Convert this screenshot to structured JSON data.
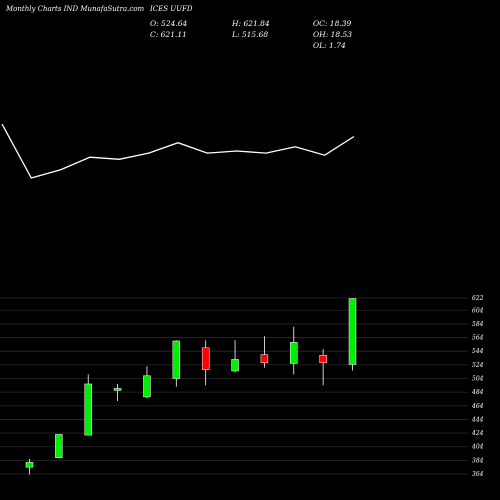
{
  "header": {
    "title": "Monthly Charts IND MunafaSutra.com",
    "symbol": "ICES UUFD",
    "open_text": "O: 524.64",
    "high_text": "H: 621.84",
    "oc_text": "OC: 18.39",
    "close_text": "C: 621.11",
    "low_text": "L: 515.68",
    "oh_text": "OH: 18.53",
    "ol_text": "OL: 1.74"
  },
  "colors": {
    "background": "#000000",
    "bullish": "#00ee00",
    "bearish": "#ff0000",
    "neutral": "#ffffff",
    "grid": "#2a2a2a",
    "line": "#ffffff",
    "text": "#ffffff"
  },
  "chart_data": [
    {
      "type": "line",
      "x": [
        1,
        2,
        3,
        4,
        5,
        6,
        7,
        8,
        9,
        10,
        11,
        12,
        13
      ],
      "values": [
        54,
        28,
        32,
        38,
        37,
        40,
        45,
        40,
        41,
        40,
        43,
        39,
        48
      ]
    },
    {
      "type": "candlestick",
      "y_ticks": [
        364,
        384,
        404,
        424,
        444,
        464,
        484,
        504,
        524,
        544,
        564,
        584,
        604,
        622
      ],
      "ylim": [
        360,
        630
      ],
      "candles": [
        {
          "open": 374,
          "high": 386,
          "low": 363,
          "close": 381
        },
        {
          "open": 388,
          "high": 422,
          "low": 388,
          "close": 422
        },
        {
          "open": 421,
          "high": 510,
          "low": 421,
          "close": 496
        },
        {
          "open": 486,
          "high": 496,
          "low": 471,
          "close": 488
        },
        {
          "open": 477,
          "high": 522,
          "low": 475,
          "close": 508
        },
        {
          "open": 504,
          "high": 560,
          "low": 492,
          "close": 559
        },
        {
          "open": 549,
          "high": 560,
          "low": 494,
          "close": 517
        },
        {
          "open": 515,
          "high": 560,
          "low": 513,
          "close": 532
        },
        {
          "open": 539,
          "high": 566,
          "low": 520,
          "close": 527
        },
        {
          "open": 526,
          "high": 580,
          "low": 510,
          "close": 557
        },
        {
          "open": 538,
          "high": 547,
          "low": 494,
          "close": 527
        },
        {
          "open": 524.64,
          "high": 621.84,
          "low": 515.68,
          "close": 621.11
        }
      ]
    }
  ]
}
